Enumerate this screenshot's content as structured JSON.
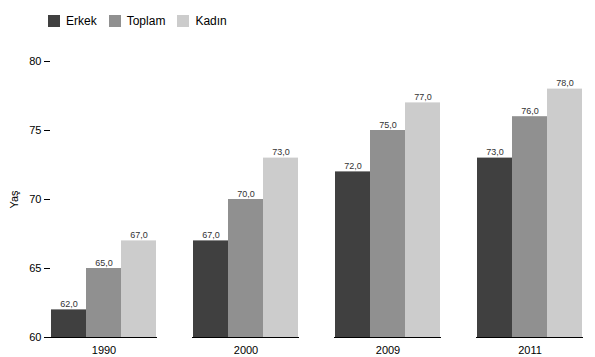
{
  "chart_data": {
    "type": "bar",
    "categories": [
      "1990",
      "2000",
      "2009",
      "2011"
    ],
    "series": [
      {
        "name": "Erkek",
        "color": "#404040",
        "values": [
          62.0,
          67.0,
          72.0,
          73.0
        ],
        "value_labels": [
          "62,0",
          "67,0",
          "72,0",
          "73,0"
        ]
      },
      {
        "name": "Toplam",
        "color": "#909090",
        "values": [
          65.0,
          70.0,
          75.0,
          76.0
        ],
        "value_labels": [
          "65,0",
          "70,0",
          "75,0",
          "76,0"
        ]
      },
      {
        "name": "Kadın",
        "color": "#cccccc",
        "values": [
          67.0,
          73.0,
          77.0,
          78.0
        ],
        "value_labels": [
          "67,0",
          "73,0",
          "77,0",
          "78,0"
        ]
      }
    ],
    "ylabel": "Yaş",
    "ylim": [
      60,
      80
    ],
    "yticks": [
      60,
      65,
      70,
      75,
      80
    ],
    "legend": "upper left",
    "data_labels": true,
    "grid": false
  }
}
